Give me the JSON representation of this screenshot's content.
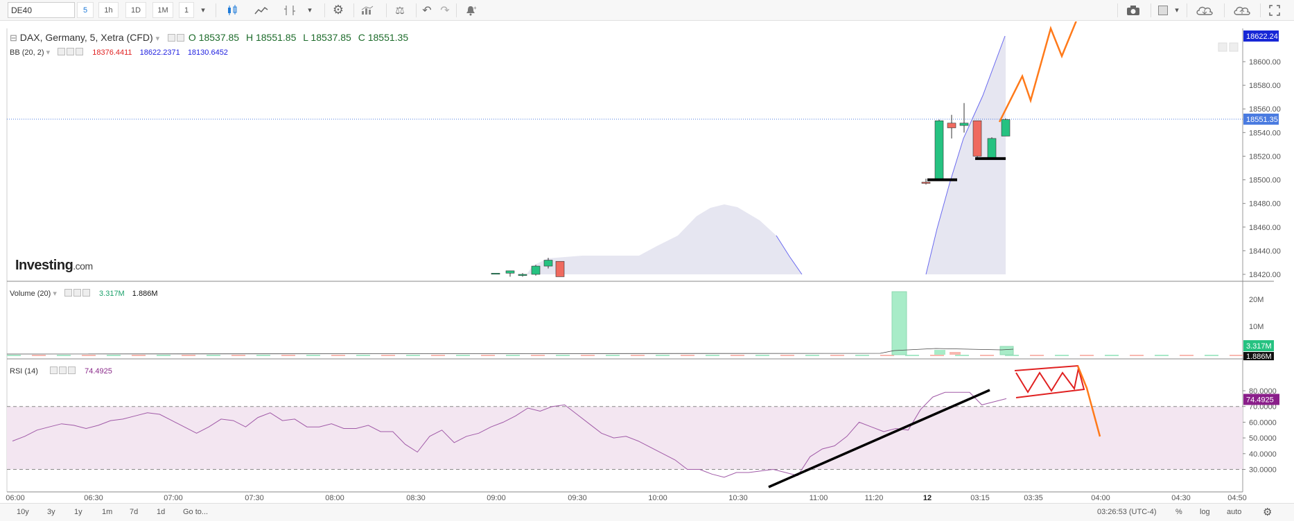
{
  "toolbar": {
    "symbol": "DE40",
    "intervals": [
      "5",
      "1h",
      "1D",
      "1M",
      "1"
    ],
    "active_interval": "5"
  },
  "legend": {
    "title": "DAX, Germany, 5, Xetra (CFD)",
    "open": "O 18537.85",
    "high": "H 18551.85",
    "low": "L 18537.85",
    "close": "C 18551.35",
    "bb_label": "BB (20, 2)",
    "bb_values": [
      "18376.4411",
      "18622.2371",
      "18130.6452"
    ],
    "volume_label": "Volume (20)",
    "volume_values": [
      "3.317M",
      "1.886M"
    ],
    "rsi_label": "RSI (14)",
    "rsi_value": "74.4925"
  },
  "logo": {
    "brand": "Investing",
    "suffix": ".com"
  },
  "price_axis": {
    "ticks": [
      "18600.00",
      "18580.00",
      "18560.00",
      "18540.00",
      "18520.00",
      "18500.00",
      "18480.00",
      "18460.00",
      "18440.00",
      "18420.00"
    ],
    "top_badge": "18622.24",
    "last_badge": "18551.35"
  },
  "volume_axis": {
    "ticks": [
      "20M",
      "10M"
    ],
    "badge1": "3.317M",
    "badge2": "1.886M"
  },
  "rsi_axis": {
    "ticks": [
      "80.0000",
      "70.0000",
      "60.0000",
      "50.0000",
      "40.0000",
      "30.0000"
    ],
    "badge": "74.4925"
  },
  "time_axis": {
    "labels": [
      "06:00",
      "06:30",
      "07:00",
      "07:30",
      "08:00",
      "08:30",
      "09:00",
      "09:30",
      "10:00",
      "10:30",
      "11:00",
      "11:20",
      "12",
      "03:15",
      "03:35",
      "04:00",
      "04:30",
      "04:50"
    ]
  },
  "bottom": {
    "ranges": [
      "10y",
      "3y",
      "1y",
      "1m",
      "7d",
      "1d"
    ],
    "goto": "Go to...",
    "clock": "03:26:53 (UTC-4)",
    "pct": "%",
    "log": "log",
    "auto": "auto"
  },
  "colors": {
    "up": "#26c281",
    "down": "#ef6a5f",
    "bb_fill": "#e6e6f1",
    "rsi_fill": "#f3e6f1",
    "rsi_line": "#a05aa7",
    "bb_line": "#6a6af0",
    "drawing": "#ff7a1a",
    "accent": "#1f7bd9"
  },
  "chart_data": {
    "type": "candlestick",
    "series": [
      {
        "name": "DAX, Germany, 5, Xetra (CFD)",
        "candles": [
          [
            18421,
            18421,
            18420,
            18421
          ],
          [
            18421,
            18423,
            18418,
            18423
          ],
          [
            18419,
            18421,
            18418,
            18420
          ],
          [
            18420,
            18428,
            18419,
            18427
          ],
          [
            18427,
            18434,
            18425,
            18432
          ],
          [
            18431,
            18431,
            18418,
            18418
          ],
          [
            18498,
            18501,
            18496,
            18497
          ],
          [
            18500,
            18551,
            18500,
            18550
          ],
          [
            18548,
            18555,
            18535,
            18544
          ],
          [
            18546,
            18565,
            18540,
            18548
          ],
          [
            18550,
            18550,
            18518,
            18520
          ],
          [
            18518,
            18536,
            18517,
            18535
          ],
          [
            18537,
            18552,
            18537,
            18551
          ]
        ]
      }
    ],
    "rsi": [
      48,
      51,
      55,
      57,
      59,
      58,
      56,
      58,
      61,
      62,
      64,
      66,
      65,
      61,
      57,
      53,
      57,
      62,
      61,
      57,
      63,
      66,
      61,
      62,
      57,
      57,
      59,
      56,
      56,
      58,
      54,
      54,
      46,
      41,
      51,
      55,
      47,
      51,
      53,
      57,
      60,
      64,
      69,
      67,
      70,
      71,
      65,
      59,
      53,
      50,
      51,
      48,
      44,
      40,
      36,
      30,
      30,
      27,
      25,
      28,
      28,
      29,
      30,
      28,
      26,
      38,
      43,
      45,
      51,
      60,
      57,
      54,
      56,
      55,
      68,
      76,
      79,
      79,
      79,
      71,
      73,
      75
    ]
  }
}
